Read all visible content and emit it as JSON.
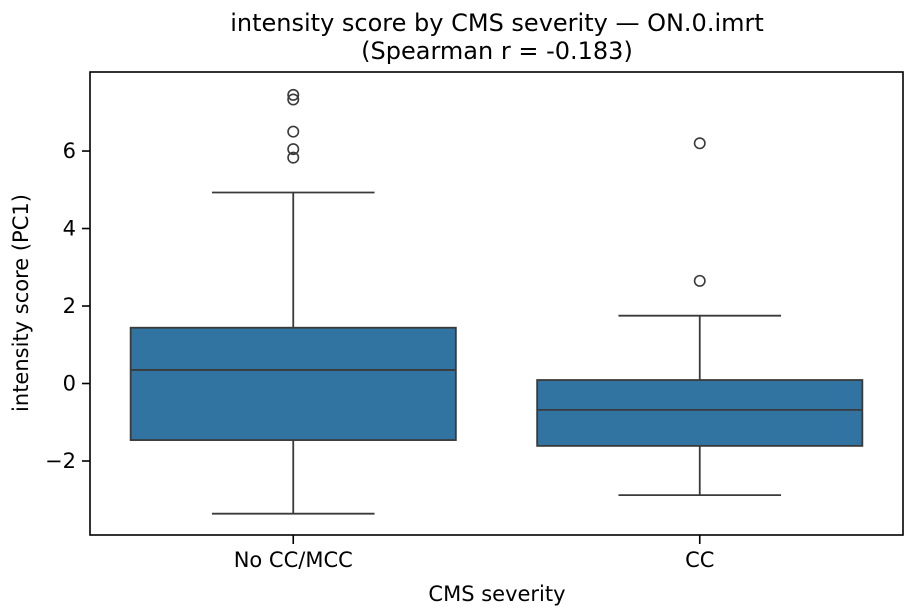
{
  "chart_data": {
    "type": "box",
    "title_line1": "intensity score by CMS severity — ON.0.imrt",
    "title_line2": "(Spearman r = -0.183)",
    "xlabel": "CMS severity",
    "ylabel": "intensity score (PC1)",
    "categories": [
      "No CC/MCC",
      "CC"
    ],
    "series": [
      {
        "name": "No CC/MCC",
        "whislo": -3.36,
        "q1": -1.46,
        "med": 0.35,
        "q3": 1.44,
        "whishi": 4.93,
        "outliers": [
          5.83,
          6.05,
          6.5,
          7.33,
          7.45
        ]
      },
      {
        "name": "CC",
        "whislo": -2.88,
        "q1": -1.61,
        "med": -0.68,
        "q3": 0.09,
        "whishi": 1.75,
        "outliers": [
          2.65,
          6.2
        ]
      }
    ],
    "yticks": [
      -2,
      0,
      2,
      4,
      6
    ],
    "ylim": [
      -3.91,
      8.04
    ],
    "grid": false,
    "legend_position": "none",
    "colors": {
      "box_fill": "#3274a1",
      "line": "#3a3a3a",
      "spine": "#000000",
      "text": "#000000",
      "background": "#ffffff"
    }
  }
}
